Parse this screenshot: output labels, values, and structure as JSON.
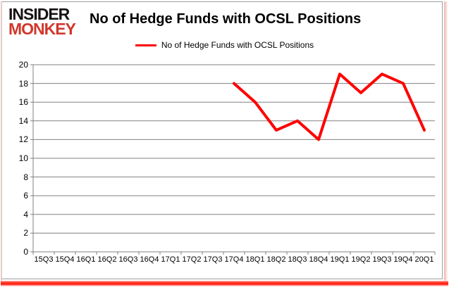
{
  "logo": {
    "line1": "INSIDER",
    "line2": "MONKEY"
  },
  "colors": {
    "logo_black": "#161213",
    "logo_red": "#d0382c",
    "line": "#ff0000",
    "grid": "#808080",
    "text": "#000000",
    "frame_glow": "#ff1506"
  },
  "chart_data": {
    "type": "line",
    "title": "No of Hedge Funds with OCSL Positions",
    "legend": [
      "No of Hedge Funds with OCSL Positions"
    ],
    "categories": [
      "15Q3",
      "15Q4",
      "16Q1",
      "16Q2",
      "16Q3",
      "16Q4",
      "17Q1",
      "17Q2",
      "17Q3",
      "17Q4",
      "18Q1",
      "18Q2",
      "18Q3",
      "18Q4",
      "19Q1",
      "19Q2",
      "19Q3",
      "19Q4",
      "20Q1"
    ],
    "series": [
      {
        "name": "No of Hedge Funds with OCSL Positions",
        "color": "#ff0000",
        "values": [
          null,
          null,
          null,
          null,
          null,
          null,
          null,
          null,
          null,
          18,
          16,
          13,
          14,
          12,
          19,
          17,
          19,
          18,
          13
        ]
      }
    ],
    "xlabel": "",
    "ylabel": "",
    "ylim": [
      0,
      20
    ],
    "ytick_step": 2,
    "grid": "horizontal",
    "legend_position": "top"
  }
}
